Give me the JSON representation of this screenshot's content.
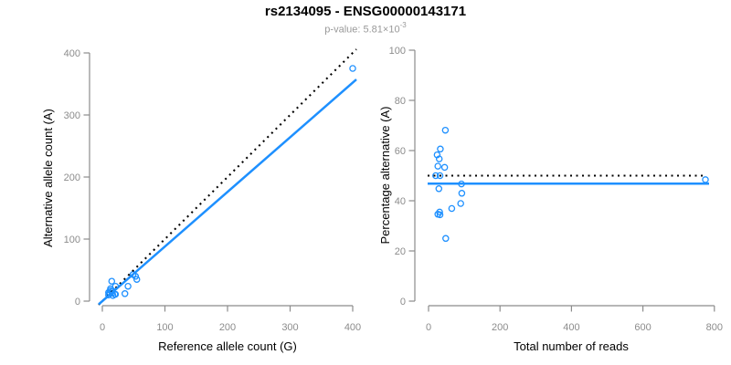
{
  "header": {
    "title": "rs2134095 - ENSG00000143171",
    "pvalue_prefix": "p-value: 5.81×10",
    "pvalue_exponent": "-3"
  },
  "colors": {
    "accent_blue": "#1E90FF",
    "axis_gray": "#8c8c8c",
    "tick_label_gray": "#8c8c8c",
    "subtitle_gray": "#999999",
    "reference_line_black": "#000000"
  },
  "chart_data": [
    {
      "type": "scatter",
      "panel": "allele-counts",
      "title": "rs2134095 - ENSG00000143171",
      "subtitle": "p-value: 5.81×10-3",
      "xlabel": "Reference allele count (G)",
      "ylabel": "Alternative allele count (A)",
      "xlim": [
        0,
        400
      ],
      "ylim": [
        0,
        400
      ],
      "x_ticks": [
        0,
        100,
        200,
        300,
        400
      ],
      "y_ticks": [
        0,
        100,
        200,
        300,
        400
      ],
      "grid": false,
      "marker": "open-circle",
      "points": [
        [
          15,
          32
        ],
        [
          13,
          20
        ],
        [
          10,
          14
        ],
        [
          13,
          17
        ],
        [
          12,
          14
        ],
        [
          21,
          24
        ],
        [
          10,
          10
        ],
        [
          16,
          16
        ],
        [
          49,
          43
        ],
        [
          16,
          13
        ],
        [
          53,
          40
        ],
        [
          55,
          35
        ],
        [
          41,
          24
        ],
        [
          20,
          11
        ],
        [
          17,
          9
        ],
        [
          21,
          11
        ],
        [
          36,
          12
        ],
        [
          400,
          375
        ]
      ],
      "lines": [
        {
          "name": "identity",
          "style": "dotted",
          "color": "#000000",
          "slope": 1,
          "intercept": 0
        },
        {
          "name": "fit",
          "style": "solid",
          "color": "#1E90FF",
          "slope": 0.88,
          "intercept": 0
        }
      ]
    },
    {
      "type": "scatter",
      "panel": "percentage-vs-depth",
      "xlabel": "Total number of reads",
      "ylabel": "Percentage alternative (A)",
      "xlim": [
        0,
        800
      ],
      "ylim": [
        0,
        100
      ],
      "x_ticks": [
        0,
        200,
        400,
        600,
        800
      ],
      "y_ticks": [
        0,
        20,
        40,
        60,
        80,
        100
      ],
      "grid": false,
      "marker": "open-circle",
      "points": [
        [
          47,
          68.1
        ],
        [
          33,
          60.6
        ],
        [
          24,
          58.3
        ],
        [
          30,
          56.7
        ],
        [
          26,
          53.8
        ],
        [
          45,
          53.3
        ],
        [
          20,
          50.0
        ],
        [
          32,
          50.0
        ],
        [
          92,
          46.7
        ],
        [
          29,
          44.8
        ],
        [
          93,
          43.0
        ],
        [
          90,
          38.9
        ],
        [
          65,
          36.9
        ],
        [
          31,
          35.5
        ],
        [
          26,
          34.6
        ],
        [
          32,
          34.4
        ],
        [
          48,
          25.0
        ],
        [
          775,
          48.4
        ]
      ],
      "lines": [
        {
          "name": "expected",
          "style": "dotted",
          "color": "#000000",
          "y": 50
        },
        {
          "name": "fit",
          "style": "solid",
          "color": "#1E90FF",
          "y": 46.8
        }
      ]
    }
  ]
}
